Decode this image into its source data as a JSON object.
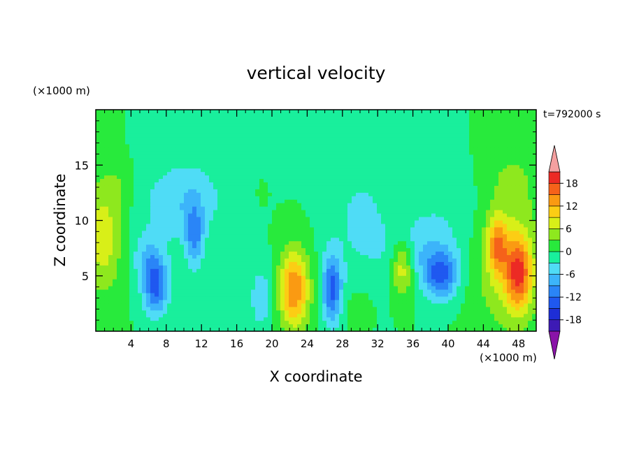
{
  "chart_data": {
    "type": "heatmap",
    "title": "vertical velocity",
    "xlabel": "X coordinate",
    "ylabel": "Z coordinate",
    "x_unit": "(×1000 m)",
    "y_unit": "(×1000 m)",
    "time_label": "t=792000 s",
    "xlim": [
      0,
      50
    ],
    "ylim": [
      0,
      20
    ],
    "x_ticks": [
      4,
      8,
      12,
      16,
      20,
      24,
      28,
      32,
      36,
      40,
      44,
      48
    ],
    "y_ticks": [
      5,
      10,
      15
    ],
    "colorbar": {
      "tick_labels": [
        "18",
        "12",
        "6",
        "0",
        "-6",
        "-12",
        "-18"
      ],
      "tick_values": [
        18,
        12,
        6,
        0,
        -6,
        -12,
        -18
      ],
      "levels": [
        -21,
        -18,
        -15,
        -12,
        -9,
        -6,
        -3,
        0,
        3,
        6,
        9,
        12,
        15,
        18,
        21
      ],
      "colors": [
        "#6a0fa6",
        "#3d1ab5",
        "#1e2ed6",
        "#1f58f0",
        "#2a85f7",
        "#3cb4fa",
        "#4fdcf6",
        "#19ef9c",
        "#28ea3c",
        "#8ee81e",
        "#d8ef18",
        "#fccd14",
        "#fa9a12",
        "#f5621a",
        "#ec2a24",
        "#d80a2a"
      ],
      "under_color": "#8a14a8",
      "over_color": "#f4a0a0"
    },
    "features": [
      {
        "x": 48,
        "z": 5.2,
        "value": 14
      },
      {
        "x": 45.5,
        "z": 8,
        "value": 11
      },
      {
        "x": 22.5,
        "z": 3.8,
        "value": 15
      },
      {
        "x": 34.8,
        "z": 5.8,
        "value": 10
      },
      {
        "x": 0.8,
        "z": 8.5,
        "value": 8
      },
      {
        "x": 6.8,
        "z": 4,
        "value": -13
      },
      {
        "x": 26.8,
        "z": 3.8,
        "value": -13
      },
      {
        "x": 39.2,
        "z": 5,
        "value": -12
      },
      {
        "x": 11.2,
        "z": 8.5,
        "value": -9
      },
      {
        "x": 18.8,
        "z": 2.8,
        "value": -5
      }
    ]
  }
}
